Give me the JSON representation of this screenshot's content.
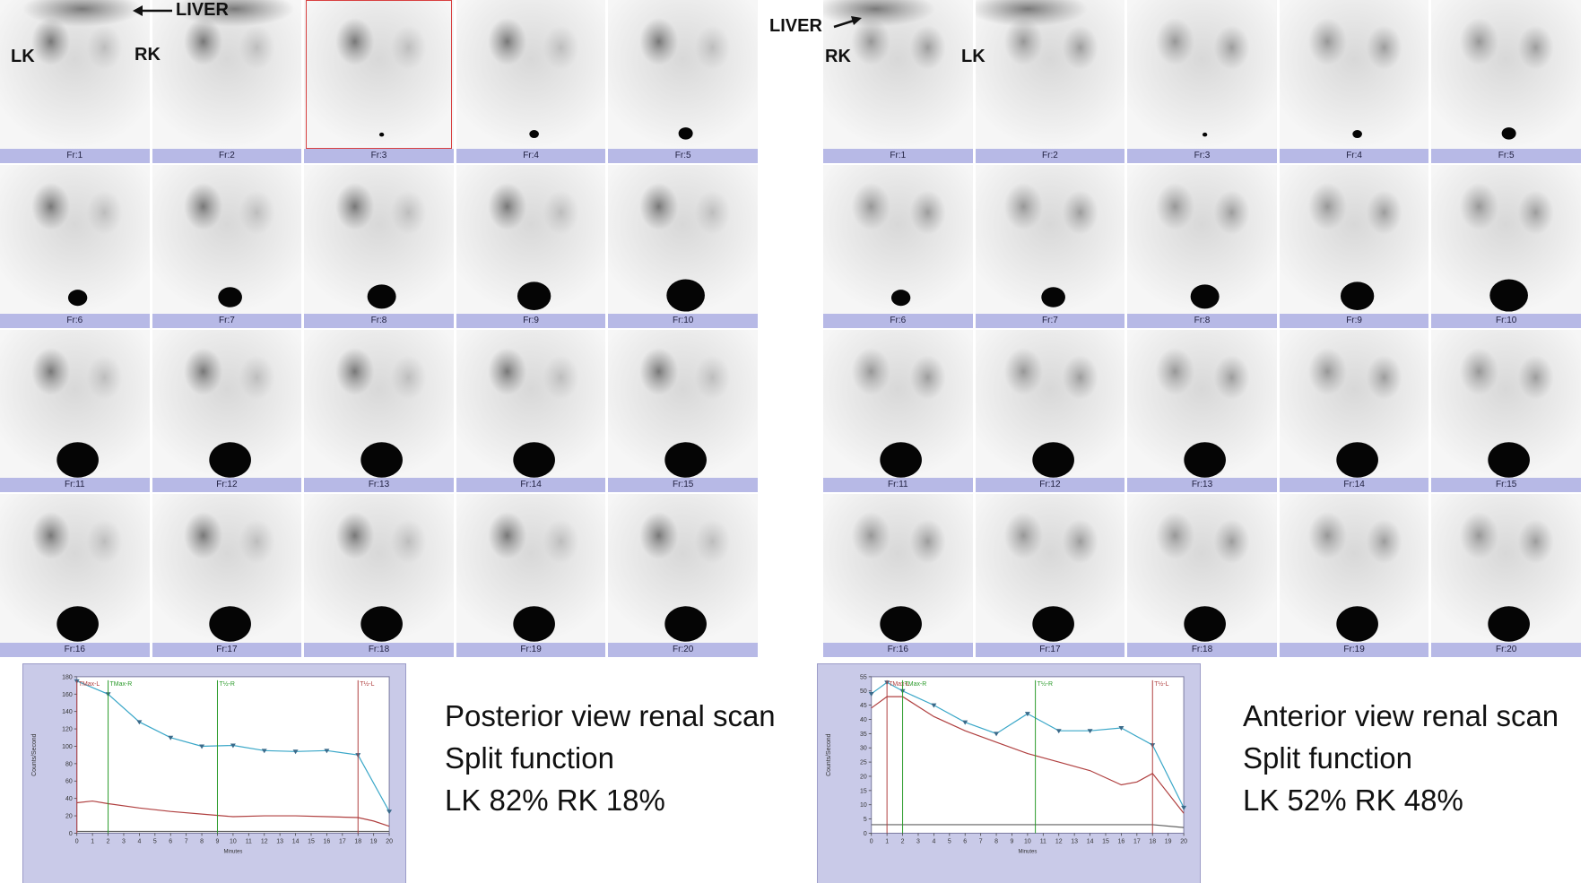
{
  "posterior": {
    "frames": [
      "Fr:1",
      "Fr:2",
      "Fr:3",
      "Fr:4",
      "Fr:5",
      "Fr:6",
      "Fr:7",
      "Fr:8",
      "Fr:9",
      "Fr:10",
      "Fr:11",
      "Fr:12",
      "Fr:13",
      "Fr:14",
      "Fr:15",
      "Fr:16",
      "Fr:17",
      "Fr:18",
      "Fr:19",
      "Fr:20"
    ],
    "selected_frame": 3,
    "labels": {
      "liver": "LIVER",
      "left_kidney": "LK",
      "right_kidney": "RK"
    },
    "caption": {
      "line1": "Posterior view renal scan",
      "line2": "Split function",
      "line3": "LK 82% RK 18%"
    }
  },
  "anterior": {
    "frames": [
      "Fr:1",
      "Fr:2",
      "Fr:3",
      "Fr:4",
      "Fr:5",
      "Fr:6",
      "Fr:7",
      "Fr:8",
      "Fr:9",
      "Fr:10",
      "Fr:11",
      "Fr:12",
      "Fr:13",
      "Fr:14",
      "Fr:15",
      "Fr:16",
      "Fr:17",
      "Fr:18",
      "Fr:19",
      "Fr:20"
    ],
    "labels": {
      "liver": "LIVER",
      "right_kidney": "RK",
      "left_kidney": "LK"
    },
    "caption": {
      "line1": "Anterior view renal scan",
      "line2": "Split function",
      "line3": "LK 52% RK 48%"
    }
  },
  "chart_data": [
    {
      "type": "line",
      "ylabel": "Counts/Second",
      "xlabel": "Minutes",
      "xlim": [
        0,
        20
      ],
      "ylim": [
        0,
        180
      ],
      "xticks": [
        0,
        1,
        2,
        3,
        4,
        5,
        6,
        7,
        8,
        9,
        10,
        11,
        12,
        13,
        14,
        15,
        16,
        17,
        18,
        19,
        20
      ],
      "yticks": [
        0,
        20,
        40,
        60,
        80,
        100,
        120,
        140,
        160,
        180
      ],
      "series": [
        {
          "x": [
            0,
            2,
            4,
            6,
            8,
            10,
            12,
            14,
            16,
            18,
            20
          ],
          "y": [
            175,
            160,
            128,
            110,
            100,
            101,
            95,
            94,
            95,
            90,
            25
          ],
          "color": "#3aa7c8",
          "marker": "triangle"
        },
        {
          "x": [
            0,
            1,
            2,
            4,
            6,
            8,
            10,
            12,
            14,
            16,
            18,
            19,
            20
          ],
          "y": [
            35,
            37,
            34,
            29,
            25,
            22,
            19,
            20,
            20,
            19,
            18,
            14,
            8
          ],
          "color": "#b04040"
        },
        {
          "x": [
            0,
            4,
            8,
            12,
            16,
            20
          ],
          "y": [
            2,
            2,
            2,
            2,
            2,
            2
          ],
          "color": "#606060"
        }
      ],
      "annotations": [
        {
          "text": "TMax-L",
          "x": 0,
          "color": "#b04040"
        },
        {
          "text": "TMax-R",
          "x": 2,
          "color": "#2a9a2a"
        },
        {
          "text": "T½-R",
          "x": 9,
          "color": "#2a9a2a"
        },
        {
          "text": "T½-L",
          "x": 18,
          "color": "#b04040"
        }
      ]
    },
    {
      "type": "line",
      "ylabel": "Counts/Second",
      "xlabel": "Minutes",
      "xlim": [
        0,
        20
      ],
      "ylim": [
        0,
        55
      ],
      "xticks": [
        0,
        1,
        2,
        3,
        4,
        5,
        6,
        7,
        8,
        9,
        10,
        11,
        12,
        13,
        14,
        15,
        16,
        17,
        18,
        19,
        20
      ],
      "yticks": [
        0,
        5,
        10,
        15,
        20,
        25,
        30,
        35,
        40,
        45,
        50,
        55
      ],
      "series": [
        {
          "x": [
            0,
            1,
            2,
            4,
            6,
            8,
            10,
            12,
            14,
            16,
            18,
            20
          ],
          "y": [
            49,
            53,
            50,
            45,
            39,
            35,
            42,
            36,
            36,
            37,
            31,
            9
          ],
          "color": "#3aa7c8",
          "marker": "triangle"
        },
        {
          "x": [
            0,
            1,
            2,
            4,
            6,
            8,
            10,
            12,
            14,
            16,
            17,
            18,
            20
          ],
          "y": [
            44,
            48,
            48,
            41,
            36,
            32,
            28,
            25,
            22,
            17,
            18,
            21,
            7
          ],
          "color": "#b04040"
        },
        {
          "x": [
            0,
            4,
            8,
            12,
            16,
            18,
            20
          ],
          "y": [
            3,
            3,
            3,
            3,
            3,
            3,
            2
          ],
          "color": "#606060"
        }
      ],
      "annotations": [
        {
          "text": "TMax-L",
          "x": 1,
          "color": "#b04040"
        },
        {
          "text": "TMax-R",
          "x": 2,
          "color": "#2a9a2a"
        },
        {
          "text": "T½-R",
          "x": 10.5,
          "color": "#2a9a2a"
        },
        {
          "text": "T½-L",
          "x": 18,
          "color": "#b04040"
        }
      ]
    }
  ]
}
